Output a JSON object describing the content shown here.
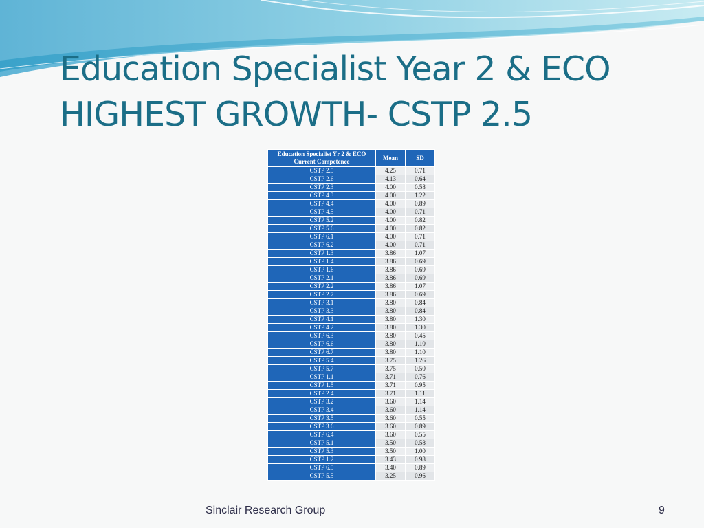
{
  "slide": {
    "title_line1": "Education Specialist Year 2 & ECO",
    "title_line2": "HIGHEST GROWTH- CSTP 2.5",
    "footer": "Sinclair Research Group",
    "page_number": "9"
  },
  "table": {
    "header": {
      "competence_line1": "Education Specialist Yr 2 & ECO",
      "competence_line2": "Current Competence",
      "mean": "Mean",
      "sd": "SD"
    },
    "rows": [
      {
        "label": "CSTP 2.5",
        "mean": "4.25",
        "sd": "0.71"
      },
      {
        "label": "CSTP 2.6",
        "mean": "4.13",
        "sd": "0.64"
      },
      {
        "label": "CSTP 2.3",
        "mean": "4.00",
        "sd": "0.58"
      },
      {
        "label": "CSTP 4.3",
        "mean": "4.00",
        "sd": "1.22"
      },
      {
        "label": "CSTP 4.4",
        "mean": "4.00",
        "sd": "0.89"
      },
      {
        "label": "CSTP 4.5",
        "mean": "4.00",
        "sd": "0.71"
      },
      {
        "label": "CSTP 5.2",
        "mean": "4.00",
        "sd": "0.82"
      },
      {
        "label": "CSTP 5.6",
        "mean": "4.00",
        "sd": "0.82"
      },
      {
        "label": "CSTP 6.1",
        "mean": "4.00",
        "sd": "0.71"
      },
      {
        "label": "CSTP 6.2",
        "mean": "4.00",
        "sd": "0.71"
      },
      {
        "label": "CSTP 1.3",
        "mean": "3.86",
        "sd": "1.07"
      },
      {
        "label": "CSTP 1.4",
        "mean": "3.86",
        "sd": "0.69"
      },
      {
        "label": "CSTP 1.6",
        "mean": "3.86",
        "sd": "0.69"
      },
      {
        "label": "CSTP 2.1",
        "mean": "3.86",
        "sd": "0.69"
      },
      {
        "label": "CSTP 2.2",
        "mean": "3.86",
        "sd": "1.07"
      },
      {
        "label": "CSTP 2.7",
        "mean": "3.86",
        "sd": "0.69"
      },
      {
        "label": "CSTP 3.1",
        "mean": "3.80",
        "sd": "0.84"
      },
      {
        "label": "CSTP 3.3",
        "mean": "3.80",
        "sd": "0.84"
      },
      {
        "label": "CSTP 4.1",
        "mean": "3.80",
        "sd": "1.30"
      },
      {
        "label": "CSTP 4.2",
        "mean": "3.80",
        "sd": "1.30"
      },
      {
        "label": "CSTP 6.3",
        "mean": "3.80",
        "sd": "0.45"
      },
      {
        "label": "CSTP 6.6",
        "mean": "3.80",
        "sd": "1.10"
      },
      {
        "label": "CSTP 6.7",
        "mean": "3.80",
        "sd": "1.10"
      },
      {
        "label": "CSTP 5.4",
        "mean": "3.75",
        "sd": "1.26"
      },
      {
        "label": "CSTP 5.7",
        "mean": "3.75",
        "sd": "0.50"
      },
      {
        "label": "CSTP 1.1",
        "mean": "3.71",
        "sd": "0.76"
      },
      {
        "label": "CSTP 1.5",
        "mean": "3.71",
        "sd": "0.95"
      },
      {
        "label": "CSTP 2.4",
        "mean": "3.71",
        "sd": "1.11"
      },
      {
        "label": "CSTP 3.2",
        "mean": "3.60",
        "sd": "1.14"
      },
      {
        "label": "CSTP 3.4",
        "mean": "3.60",
        "sd": "1.14"
      },
      {
        "label": "CSTP 3.5",
        "mean": "3.60",
        "sd": "0.55"
      },
      {
        "label": "CSTP 3.6",
        "mean": "3.60",
        "sd": "0.89"
      },
      {
        "label": "CSTP 6.4",
        "mean": "3.60",
        "sd": "0.55"
      },
      {
        "label": "CSTP 5.1",
        "mean": "3.50",
        "sd": "0.58"
      },
      {
        "label": "CSTP 5.3",
        "mean": "3.50",
        "sd": "1.00"
      },
      {
        "label": "CSTP 1.2",
        "mean": "3.43",
        "sd": "0.98"
      },
      {
        "label": "CSTP 6.5",
        "mean": "3.40",
        "sd": "0.89"
      },
      {
        "label": "CSTP 5.5",
        "mean": "3.25",
        "sd": "0.96"
      }
    ]
  }
}
